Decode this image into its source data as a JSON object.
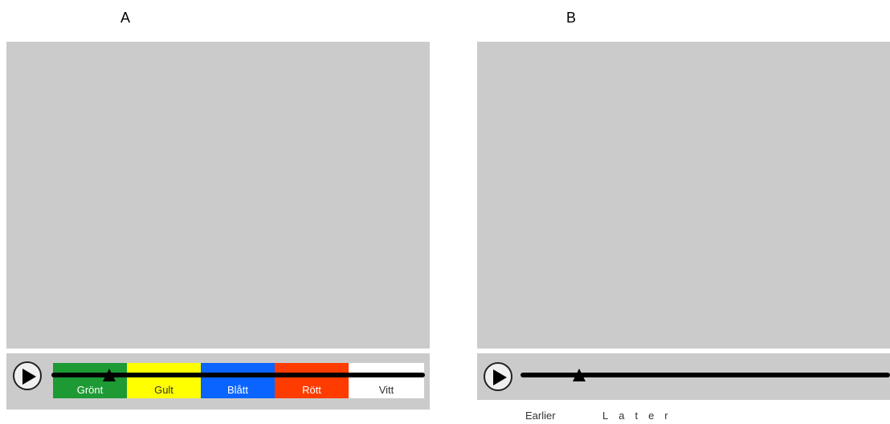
{
  "panels": {
    "a": {
      "label": "A",
      "segments": [
        {
          "label": "Grönt",
          "color": "#1e9a34",
          "text_color": "#ffffff"
        },
        {
          "label": "Gult",
          "color": "#ffff00",
          "text_color": "#333333"
        },
        {
          "label": "Blått",
          "color": "#0a64ff",
          "text_color": "#ffffff"
        },
        {
          "label": "Rött",
          "color": "#ff3c00",
          "text_color": "#ffffff"
        },
        {
          "label": "Vitt",
          "color": "#ffffff",
          "text_color": "#333333"
        }
      ]
    },
    "b": {
      "label": "B",
      "earlier_label": "Earlier",
      "later_label": "Later"
    }
  },
  "colors": {
    "video_bg": "#cbcbcb",
    "track": "#000000"
  },
  "icons": {
    "play": "play-icon",
    "marker": "triangle-marker-icon"
  }
}
